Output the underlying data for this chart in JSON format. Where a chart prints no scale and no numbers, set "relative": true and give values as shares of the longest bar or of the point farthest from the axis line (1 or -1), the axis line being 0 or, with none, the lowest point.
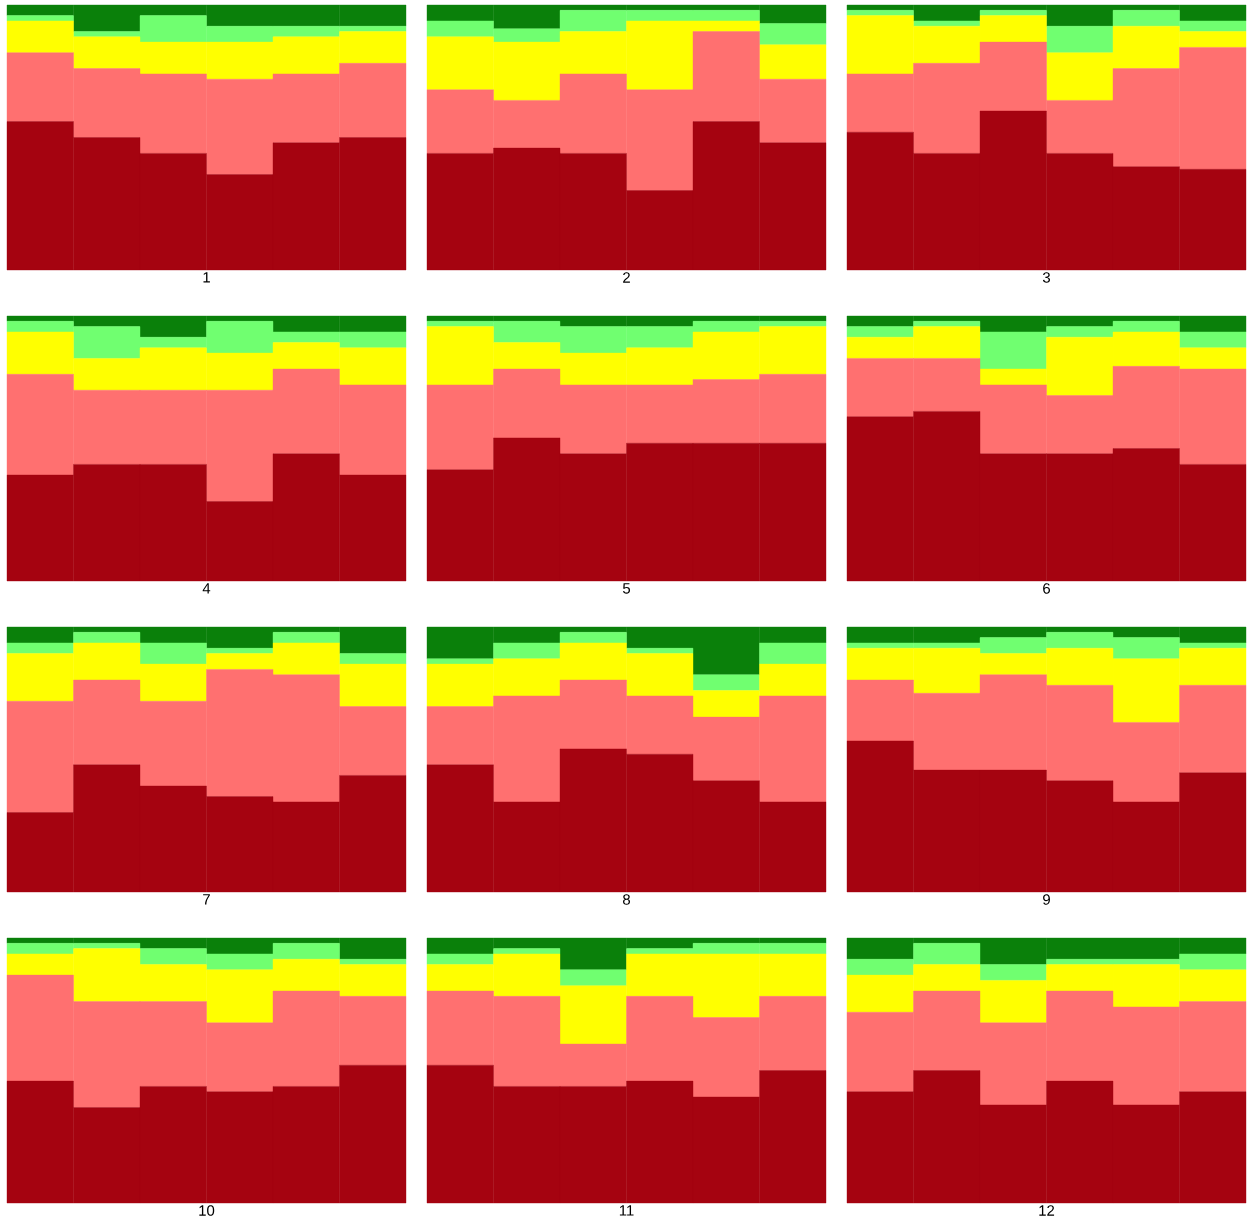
{
  "chart_data": [
    {
      "type": "bar",
      "stacked": true,
      "relative": true,
      "xlabel": "1",
      "categories": [
        null,
        null,
        null,
        null,
        null,
        null
      ],
      "series": [
        {
          "color": "#a50310",
          "values": [
            0.56,
            0.5,
            0.44,
            0.36,
            0.48,
            0.5
          ]
        },
        {
          "color": "#ff7070",
          "values": [
            0.26,
            0.26,
            0.3,
            0.36,
            0.26,
            0.28
          ]
        },
        {
          "color": "#ffff00",
          "values": [
            0.12,
            0.12,
            0.12,
            0.14,
            0.14,
            0.12
          ]
        },
        {
          "color": "#70ff70",
          "values": [
            0.02,
            0.02,
            0.1,
            0.06,
            0.04,
            0.02
          ]
        },
        {
          "color": "#0a800a",
          "values": [
            0.04,
            0.1,
            0.04,
            0.08,
            0.08,
            0.08
          ]
        }
      ]
    },
    {
      "type": "bar",
      "stacked": true,
      "relative": true,
      "xlabel": "2",
      "categories": [
        null,
        null,
        null,
        null,
        null,
        null
      ],
      "series": [
        {
          "color": "#a50310",
          "values": [
            0.44,
            0.46,
            0.44,
            0.3,
            0.56,
            0.48
          ]
        },
        {
          "color": "#ff7070",
          "values": [
            0.24,
            0.18,
            0.3,
            0.38,
            0.34,
            0.24
          ]
        },
        {
          "color": "#ffff00",
          "values": [
            0.2,
            0.22,
            0.16,
            0.26,
            0.04,
            0.13
          ]
        },
        {
          "color": "#70ff70",
          "values": [
            0.06,
            0.05,
            0.08,
            0.04,
            0.04,
            0.08
          ]
        },
        {
          "color": "#0a800a",
          "values": [
            0.06,
            0.09,
            0.02,
            0.02,
            0.02,
            0.07
          ]
        }
      ]
    },
    {
      "type": "bar",
      "stacked": true,
      "relative": true,
      "xlabel": "3",
      "categories": [
        null,
        null,
        null,
        null,
        null,
        null
      ],
      "series": [
        {
          "color": "#a50310",
          "values": [
            0.52,
            0.44,
            0.6,
            0.44,
            0.39,
            0.38
          ]
        },
        {
          "color": "#ff7070",
          "values": [
            0.22,
            0.34,
            0.26,
            0.2,
            0.37,
            0.46
          ]
        },
        {
          "color": "#ffff00",
          "values": [
            0.22,
            0.14,
            0.1,
            0.18,
            0.16,
            0.06
          ]
        },
        {
          "color": "#70ff70",
          "values": [
            0.02,
            0.02,
            0.02,
            0.1,
            0.06,
            0.04
          ]
        },
        {
          "color": "#0a800a",
          "values": [
            0.02,
            0.06,
            0.02,
            0.08,
            0.02,
            0.06
          ]
        }
      ]
    },
    {
      "type": "bar",
      "stacked": true,
      "relative": true,
      "xlabel": "4",
      "categories": [
        null,
        null,
        null,
        null,
        null,
        null
      ],
      "series": [
        {
          "color": "#a50310",
          "values": [
            0.4,
            0.44,
            0.44,
            0.3,
            0.48,
            0.4
          ]
        },
        {
          "color": "#ff7070",
          "values": [
            0.38,
            0.28,
            0.28,
            0.42,
            0.32,
            0.34
          ]
        },
        {
          "color": "#ffff00",
          "values": [
            0.16,
            0.12,
            0.16,
            0.14,
            0.1,
            0.14
          ]
        },
        {
          "color": "#70ff70",
          "values": [
            0.04,
            0.12,
            0.04,
            0.12,
            0.04,
            0.06
          ]
        },
        {
          "color": "#0a800a",
          "values": [
            0.02,
            0.04,
            0.08,
            0.02,
            0.06,
            0.06
          ]
        }
      ]
    },
    {
      "type": "bar",
      "stacked": true,
      "relative": true,
      "xlabel": "5",
      "categories": [
        null,
        null,
        null,
        null,
        null,
        null
      ],
      "series": [
        {
          "color": "#a50310",
          "values": [
            0.42,
            0.54,
            0.48,
            0.52,
            0.52,
            0.52
          ]
        },
        {
          "color": "#ff7070",
          "values": [
            0.32,
            0.26,
            0.26,
            0.22,
            0.24,
            0.26
          ]
        },
        {
          "color": "#ffff00",
          "values": [
            0.22,
            0.1,
            0.12,
            0.14,
            0.18,
            0.18
          ]
        },
        {
          "color": "#70ff70",
          "values": [
            0.02,
            0.08,
            0.1,
            0.08,
            0.04,
            0.02
          ]
        },
        {
          "color": "#0a800a",
          "values": [
            0.02,
            0.02,
            0.04,
            0.04,
            0.02,
            0.02
          ]
        }
      ]
    },
    {
      "type": "bar",
      "stacked": true,
      "relative": true,
      "xlabel": "6",
      "categories": [
        null,
        null,
        null,
        null,
        null,
        null
      ],
      "series": [
        {
          "color": "#a50310",
          "values": [
            0.62,
            0.64,
            0.48,
            0.48,
            0.5,
            0.44
          ]
        },
        {
          "color": "#ff7070",
          "values": [
            0.22,
            0.2,
            0.26,
            0.22,
            0.31,
            0.36
          ]
        },
        {
          "color": "#ffff00",
          "values": [
            0.08,
            0.12,
            0.06,
            0.22,
            0.13,
            0.08
          ]
        },
        {
          "color": "#70ff70",
          "values": [
            0.04,
            0.02,
            0.14,
            0.04,
            0.04,
            0.06
          ]
        },
        {
          "color": "#0a800a",
          "values": [
            0.04,
            0.02,
            0.06,
            0.04,
            0.02,
            0.06
          ]
        }
      ]
    },
    {
      "type": "bar",
      "stacked": true,
      "relative": true,
      "xlabel": "7",
      "categories": [
        null,
        null,
        null,
        null,
        null,
        null
      ],
      "series": [
        {
          "color": "#a50310",
          "values": [
            0.3,
            0.48,
            0.4,
            0.36,
            0.34,
            0.44
          ]
        },
        {
          "color": "#ff7070",
          "values": [
            0.42,
            0.32,
            0.32,
            0.48,
            0.48,
            0.26
          ]
        },
        {
          "color": "#ffff00",
          "values": [
            0.18,
            0.14,
            0.14,
            0.06,
            0.12,
            0.16
          ]
        },
        {
          "color": "#70ff70",
          "values": [
            0.04,
            0.04,
            0.08,
            0.02,
            0.04,
            0.04
          ]
        },
        {
          "color": "#0a800a",
          "values": [
            0.06,
            0.02,
            0.06,
            0.08,
            0.02,
            0.1
          ]
        }
      ]
    },
    {
      "type": "bar",
      "stacked": true,
      "relative": true,
      "xlabel": "8",
      "categories": [
        null,
        null,
        null,
        null,
        null,
        null
      ],
      "series": [
        {
          "color": "#a50310",
          "values": [
            0.48,
            0.34,
            0.54,
            0.52,
            0.42,
            0.34
          ]
        },
        {
          "color": "#ff7070",
          "values": [
            0.22,
            0.4,
            0.26,
            0.22,
            0.24,
            0.4
          ]
        },
        {
          "color": "#ffff00",
          "values": [
            0.16,
            0.14,
            0.14,
            0.16,
            0.1,
            0.12
          ]
        },
        {
          "color": "#70ff70",
          "values": [
            0.02,
            0.06,
            0.04,
            0.02,
            0.06,
            0.08
          ]
        },
        {
          "color": "#0a800a",
          "values": [
            0.12,
            0.06,
            0.02,
            0.08,
            0.18,
            0.06
          ]
        }
      ]
    },
    {
      "type": "bar",
      "stacked": true,
      "relative": true,
      "xlabel": "9",
      "categories": [
        null,
        null,
        null,
        null,
        null,
        null
      ],
      "series": [
        {
          "color": "#a50310",
          "values": [
            0.57,
            0.46,
            0.46,
            0.42,
            0.34,
            0.45
          ]
        },
        {
          "color": "#ff7070",
          "values": [
            0.23,
            0.29,
            0.36,
            0.36,
            0.3,
            0.33
          ]
        },
        {
          "color": "#ffff00",
          "values": [
            0.12,
            0.17,
            0.08,
            0.14,
            0.24,
            0.14
          ]
        },
        {
          "color": "#70ff70",
          "values": [
            0.02,
            0.02,
            0.06,
            0.06,
            0.08,
            0.02
          ]
        },
        {
          "color": "#0a800a",
          "values": [
            0.06,
            0.06,
            0.04,
            0.02,
            0.04,
            0.06
          ]
        }
      ]
    },
    {
      "type": "bar",
      "stacked": true,
      "relative": true,
      "xlabel": "10",
      "categories": [
        null,
        null,
        null,
        null,
        null,
        null
      ],
      "series": [
        {
          "color": "#a50310",
          "values": [
            0.46,
            0.36,
            0.44,
            0.42,
            0.44,
            0.52
          ]
        },
        {
          "color": "#ff7070",
          "values": [
            0.4,
            0.4,
            0.32,
            0.26,
            0.36,
            0.26
          ]
        },
        {
          "color": "#ffff00",
          "values": [
            0.08,
            0.2,
            0.14,
            0.2,
            0.12,
            0.12
          ]
        },
        {
          "color": "#70ff70",
          "values": [
            0.04,
            0.02,
            0.06,
            0.06,
            0.06,
            0.02
          ]
        },
        {
          "color": "#0a800a",
          "values": [
            0.02,
            0.02,
            0.04,
            0.06,
            0.02,
            0.08
          ]
        }
      ]
    },
    {
      "type": "bar",
      "stacked": true,
      "relative": true,
      "xlabel": "11",
      "categories": [
        null,
        null,
        null,
        null,
        null,
        null
      ],
      "series": [
        {
          "color": "#a50310",
          "values": [
            0.52,
            0.44,
            0.44,
            0.46,
            0.4,
            0.5
          ]
        },
        {
          "color": "#ff7070",
          "values": [
            0.28,
            0.34,
            0.16,
            0.32,
            0.3,
            0.28
          ]
        },
        {
          "color": "#ffff00",
          "values": [
            0.1,
            0.16,
            0.22,
            0.16,
            0.24,
            0.16
          ]
        },
        {
          "color": "#70ff70",
          "values": [
            0.04,
            0.02,
            0.06,
            0.02,
            0.04,
            0.04
          ]
        },
        {
          "color": "#0a800a",
          "values": [
            0.06,
            0.04,
            0.12,
            0.04,
            0.02,
            0.02
          ]
        }
      ]
    },
    {
      "type": "bar",
      "stacked": true,
      "relative": true,
      "xlabel": "12",
      "categories": [
        null,
        null,
        null,
        null,
        null,
        null
      ],
      "series": [
        {
          "color": "#a50310",
          "values": [
            0.42,
            0.5,
            0.37,
            0.46,
            0.37,
            0.42
          ]
        },
        {
          "color": "#ff7070",
          "values": [
            0.3,
            0.3,
            0.31,
            0.34,
            0.37,
            0.34
          ]
        },
        {
          "color": "#ffff00",
          "values": [
            0.14,
            0.1,
            0.16,
            0.1,
            0.16,
            0.12
          ]
        },
        {
          "color": "#70ff70",
          "values": [
            0.06,
            0.08,
            0.06,
            0.02,
            0.02,
            0.06
          ]
        },
        {
          "color": "#0a800a",
          "values": [
            0.08,
            0.02,
            0.1,
            0.08,
            0.08,
            0.06
          ]
        }
      ]
    }
  ]
}
